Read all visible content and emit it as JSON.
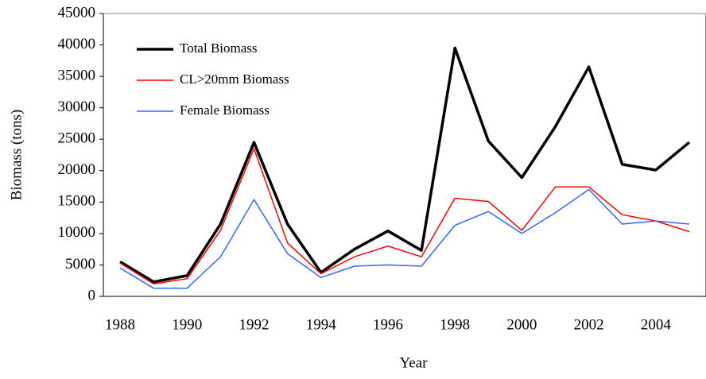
{
  "chart_data": {
    "type": "line",
    "x_label": "Year",
    "y_label": "Biomass (tons)",
    "categories": [
      "1988",
      null,
      "1990",
      null,
      "1992",
      null,
      "1994",
      null,
      "1996",
      null,
      "1998",
      null,
      "2000",
      null,
      "2002",
      null,
      "2004",
      null
    ],
    "series": [
      {
        "name": "Total Biomass",
        "color": "#000000",
        "width": 3.5,
        "values": [
          5500,
          2300,
          3300,
          11500,
          24500,
          11500,
          3800,
          7500,
          10400,
          7300,
          39500,
          24700,
          18900,
          27000,
          36500,
          21000,
          20100,
          24500
        ]
      },
      {
        "name": "CL>20mm Biomass",
        "color": "#ff0000",
        "width": 1.5,
        "values": [
          5300,
          2000,
          2800,
          10500,
          23500,
          8500,
          3600,
          6300,
          8000,
          6300,
          15600,
          15100,
          10500,
          17400,
          17400,
          13000,
          12000,
          10300
        ]
      },
      {
        "name": "Female Biomass",
        "color": "#3366ff",
        "width": 1.5,
        "values": [
          4500,
          1300,
          1300,
          6300,
          15400,
          6800,
          3000,
          4800,
          5000,
          4800,
          11300,
          13500,
          10000,
          13300,
          17000,
          11500,
          12000,
          11500
        ]
      }
    ],
    "ylim": [
      0,
      45000
    ],
    "yticks": [
      0,
      5000,
      10000,
      15000,
      20000,
      25000,
      30000,
      35000,
      40000,
      45000
    ],
    "legend": "upper left",
    "grid": false
  }
}
